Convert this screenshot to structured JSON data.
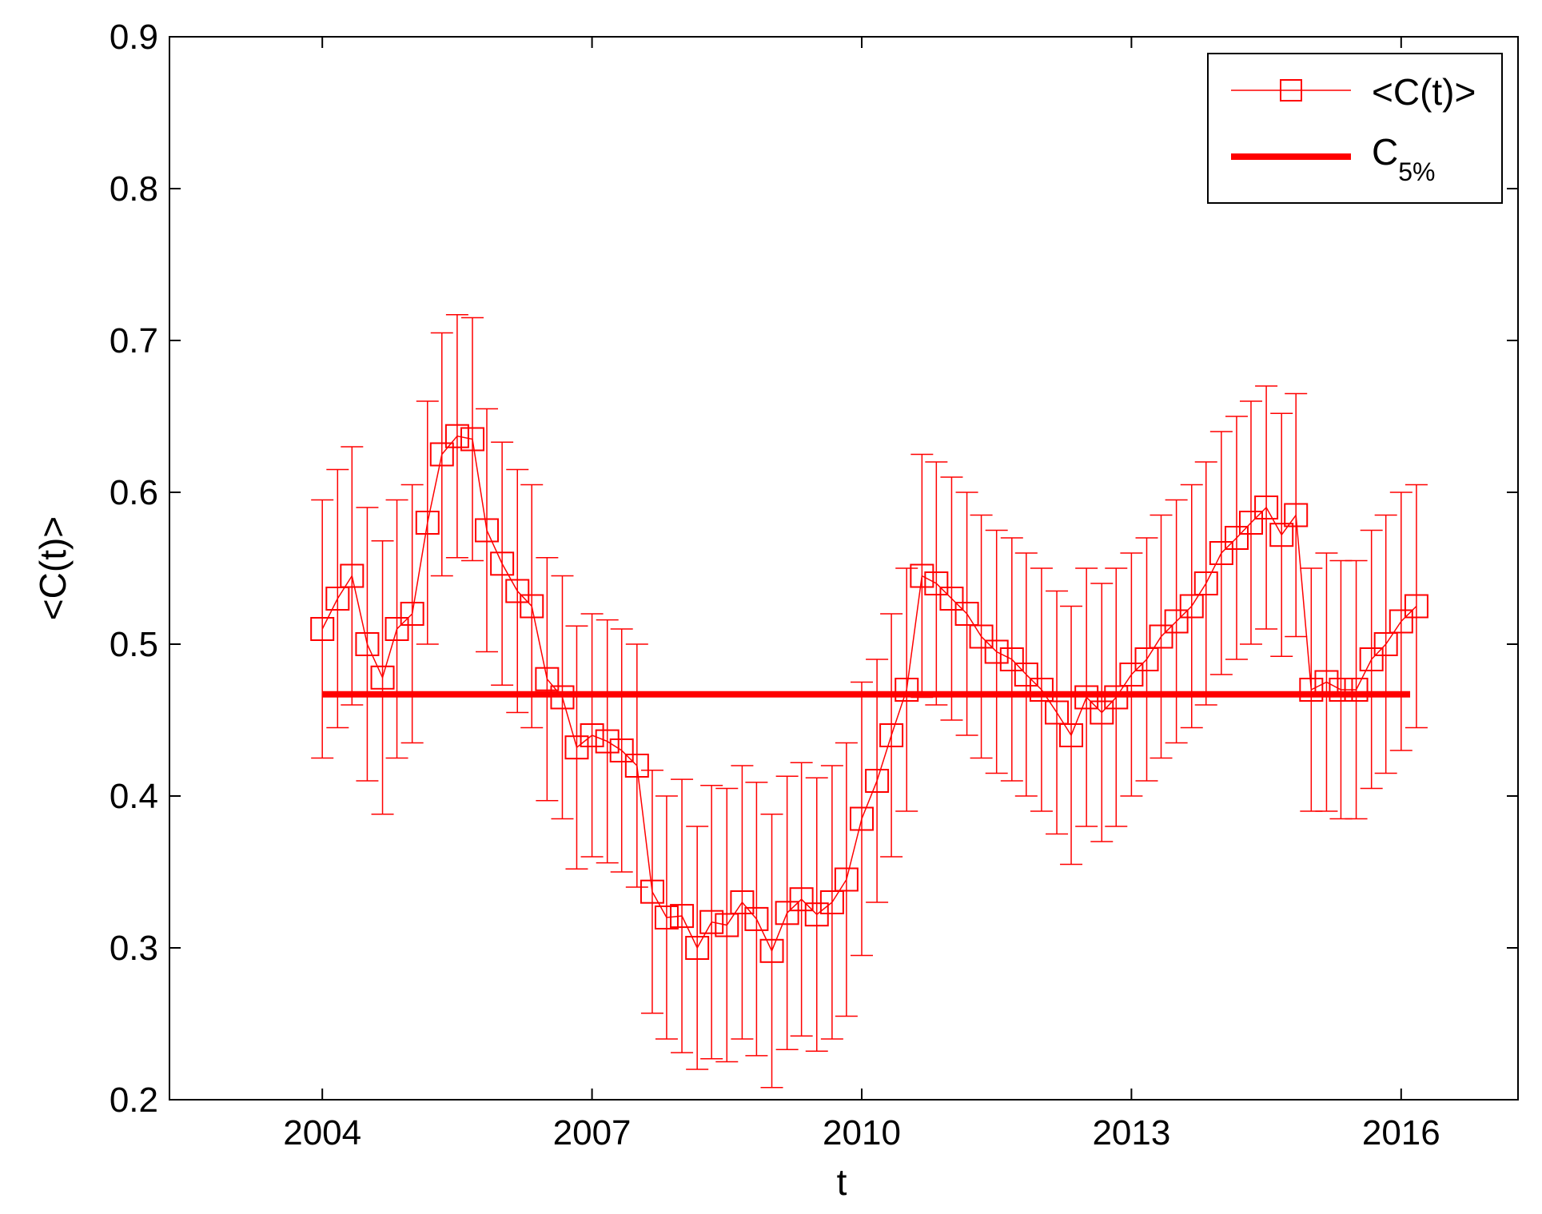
{
  "chart_data": {
    "type": "line",
    "xlabel": "t",
    "ylabel": "<C(t)>",
    "xlim": [
      2002.3,
      2017.3
    ],
    "ylim": [
      0.2,
      0.9
    ],
    "xticks": [
      2004,
      2007,
      2010,
      2013,
      2016
    ],
    "yticks": [
      0.2,
      0.3,
      0.4,
      0.5,
      0.6,
      0.7,
      0.8,
      0.9
    ],
    "ytick_labels": [
      "0.2",
      "0.3",
      "0.4",
      "0.5",
      "0.6",
      "0.7",
      "0.8",
      "0.9"
    ],
    "grid": false,
    "legend": {
      "position": "top-right",
      "entries": [
        {
          "label": "<C(t)>",
          "marker": "square",
          "line": "thin"
        },
        {
          "label": "C",
          "subscript": "5%",
          "marker": "none",
          "line": "thick"
        }
      ]
    },
    "colors": {
      "series": "#ff0000",
      "axes": "#000000"
    },
    "series": [
      {
        "name": "<C(t)>",
        "x": [
          2004.0,
          2004.17,
          2004.33,
          2004.5,
          2004.67,
          2004.83,
          2005.0,
          2005.17,
          2005.33,
          2005.5,
          2005.67,
          2005.83,
          2006.0,
          2006.17,
          2006.33,
          2006.5,
          2006.67,
          2006.83,
          2007.0,
          2007.17,
          2007.33,
          2007.5,
          2007.67,
          2007.83,
          2008.0,
          2008.17,
          2008.33,
          2008.5,
          2008.67,
          2008.83,
          2009.0,
          2009.17,
          2009.33,
          2009.5,
          2009.67,
          2009.83,
          2010.0,
          2010.17,
          2010.33,
          2010.5,
          2010.67,
          2010.83,
          2011.0,
          2011.17,
          2011.33,
          2011.5,
          2011.67,
          2011.83,
          2012.0,
          2012.17,
          2012.33,
          2012.5,
          2012.67,
          2012.83,
          2013.0,
          2013.17,
          2013.33,
          2013.5,
          2013.67,
          2013.83,
          2014.0,
          2014.17,
          2014.33,
          2014.5,
          2014.67,
          2014.83,
          2015.0,
          2015.17,
          2015.33,
          2015.5,
          2015.67,
          2015.83,
          2016.0,
          2016.17
        ],
        "y": [
          0.51,
          0.53,
          0.545,
          0.5,
          0.478,
          0.51,
          0.52,
          0.58,
          0.625,
          0.637,
          0.635,
          0.575,
          0.553,
          0.535,
          0.525,
          0.477,
          0.465,
          0.432,
          0.44,
          0.436,
          0.43,
          0.42,
          0.337,
          0.32,
          0.321,
          0.3,
          0.317,
          0.315,
          0.33,
          0.319,
          0.298,
          0.323,
          0.332,
          0.322,
          0.33,
          0.345,
          0.385,
          0.41,
          0.44,
          0.47,
          0.545,
          0.54,
          0.53,
          0.52,
          0.505,
          0.495,
          0.49,
          0.48,
          0.47,
          0.455,
          0.44,
          0.465,
          0.455,
          0.465,
          0.48,
          0.49,
          0.505,
          0.515,
          0.525,
          0.54,
          0.56,
          0.57,
          0.58,
          0.59,
          0.572,
          0.585,
          0.47,
          0.475,
          0.47,
          0.47,
          0.49,
          0.5,
          0.515,
          0.525
        ],
        "err": [
          0.085,
          0.085,
          0.085,
          0.09,
          0.09,
          0.085,
          0.085,
          0.08,
          0.08,
          0.08,
          0.08,
          0.08,
          0.08,
          0.08,
          0.08,
          0.08,
          0.08,
          0.08,
          0.08,
          0.08,
          0.08,
          0.08,
          0.08,
          0.08,
          0.09,
          0.08,
          0.09,
          0.09,
          0.09,
          0.09,
          0.09,
          0.09,
          0.09,
          0.09,
          0.09,
          0.09,
          0.09,
          0.08,
          0.08,
          0.08,
          0.08,
          0.08,
          0.08,
          0.08,
          0.08,
          0.08,
          0.08,
          0.08,
          0.08,
          0.08,
          0.085,
          0.085,
          0.085,
          0.085,
          0.08,
          0.08,
          0.08,
          0.08,
          0.08,
          0.08,
          0.08,
          0.08,
          0.08,
          0.08,
          0.08,
          0.08,
          0.08,
          0.085,
          0.085,
          0.085,
          0.085,
          0.085,
          0.085,
          0.08
        ]
      },
      {
        "name": "C",
        "subscript": "5%",
        "x": [
          2004.0,
          2016.1
        ],
        "y": [
          0.467,
          0.467
        ]
      }
    ]
  }
}
